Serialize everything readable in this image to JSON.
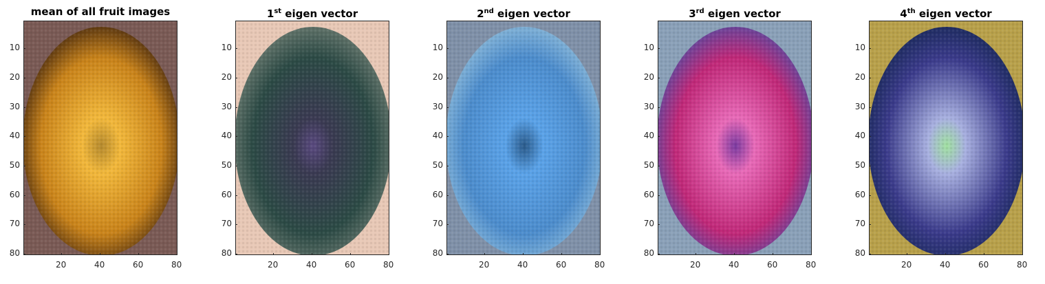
{
  "chart_data": [
    {
      "type": "image",
      "title": "mean of all fruit images",
      "title_parts": {
        "base": "mean of all fruit images",
        "sup": "",
        "rest": ""
      },
      "xticks": [
        20,
        40,
        60,
        80
      ],
      "yticks": [
        10,
        20,
        30,
        40,
        50,
        60,
        70,
        80
      ],
      "xlim": [
        0.5,
        80.5
      ],
      "ylim": [
        0.5,
        80.5
      ],
      "colors": {
        "background": "#7a5a55",
        "outer": "#c9831a",
        "inner": "#f2b83b",
        "center": "#b58a2e",
        "edge": "#4a2c10"
      }
    },
    {
      "type": "image",
      "title": "1st eigen vector",
      "title_parts": {
        "base": "1",
        "sup": "st",
        "rest": " eigen vector"
      },
      "xticks": [
        20,
        40,
        60,
        80
      ],
      "yticks": [
        10,
        20,
        30,
        40,
        50,
        60,
        70,
        80
      ],
      "xlim": [
        0.5,
        80.5
      ],
      "ylim": [
        0.5,
        80.5
      ],
      "colors": {
        "background": "#e8c8b6",
        "outer": "#2c4a45",
        "inner": "#3a3a52",
        "center": "#5a4a80",
        "edge": "#6a7a70"
      }
    },
    {
      "type": "image",
      "title": "2nd eigen vector",
      "title_parts": {
        "base": "2",
        "sup": "nd",
        "rest": " eigen vector"
      },
      "xticks": [
        20,
        40,
        60,
        80
      ],
      "yticks": [
        10,
        20,
        30,
        40,
        50,
        60,
        70,
        80
      ],
      "xlim": [
        0.5,
        80.5
      ],
      "ylim": [
        0.5,
        80.5
      ],
      "colors": {
        "background": "#7f90a8",
        "outer": "#4c8ccc",
        "inner": "#5aa2e8",
        "center": "#2a5a8a",
        "edge": "#8ab8d8"
      }
    },
    {
      "type": "image",
      "title": "3rd eigen vector",
      "title_parts": {
        "base": "3",
        "sup": "rd",
        "rest": " eigen vector"
      },
      "xticks": [
        20,
        40,
        60,
        80
      ],
      "yticks": [
        10,
        20,
        30,
        40,
        50,
        60,
        70,
        80
      ],
      "xlim": [
        0.5,
        80.5
      ],
      "ylim": [
        0.5,
        80.5
      ],
      "colors": {
        "background": "#8aa0b8",
        "outer": "#c02878",
        "inner": "#e86ab8",
        "center": "#7a3aa0",
        "edge": "#5a4aa0"
      }
    },
    {
      "type": "image",
      "title": "4th eigen vector",
      "title_parts": {
        "base": "4",
        "sup": "th",
        "rest": " eigen vector"
      },
      "xticks": [
        20,
        40,
        60,
        80
      ],
      "yticks": [
        10,
        20,
        30,
        40,
        50,
        60,
        70,
        80
      ],
      "xlim": [
        0.5,
        80.5
      ],
      "ylim": [
        0.5,
        80.5
      ],
      "colors": {
        "background": "#b8a04a",
        "outer": "#3a3a8a",
        "inner": "#a8b0e0",
        "center": "#a0e0a0",
        "edge": "#1a2a5a"
      }
    }
  ]
}
